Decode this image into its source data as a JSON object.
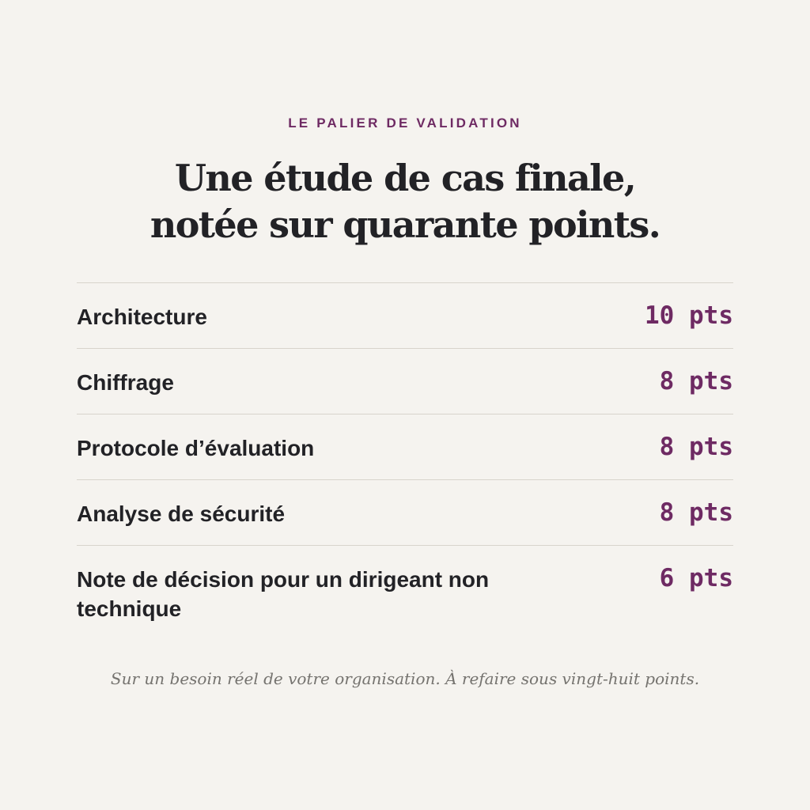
{
  "eyebrow": "LE PALIER DE VALIDATION",
  "headline": {
    "line1": "Une étude de cas finale,",
    "line2": "notée sur quarante points."
  },
  "criteria": [
    {
      "label": "Architecture",
      "points": "10 pts"
    },
    {
      "label": "Chiffrage",
      "points": "8 pts"
    },
    {
      "label": "Protocole d’évaluation",
      "points": "8 pts"
    },
    {
      "label": "Analyse de sécurité",
      "points": "8 pts"
    },
    {
      "label": "Note de décision pour un dirigeant non technique",
      "points": "6 pts"
    }
  ],
  "footnote": "Sur un besoin réel de votre organisation. À refaire sous vingt-huit points.",
  "colors": {
    "background": "#f5f3ef",
    "accent": "#6e2a63",
    "text": "#222226",
    "divider": "#d8d4cc",
    "muted": "#75736f"
  }
}
